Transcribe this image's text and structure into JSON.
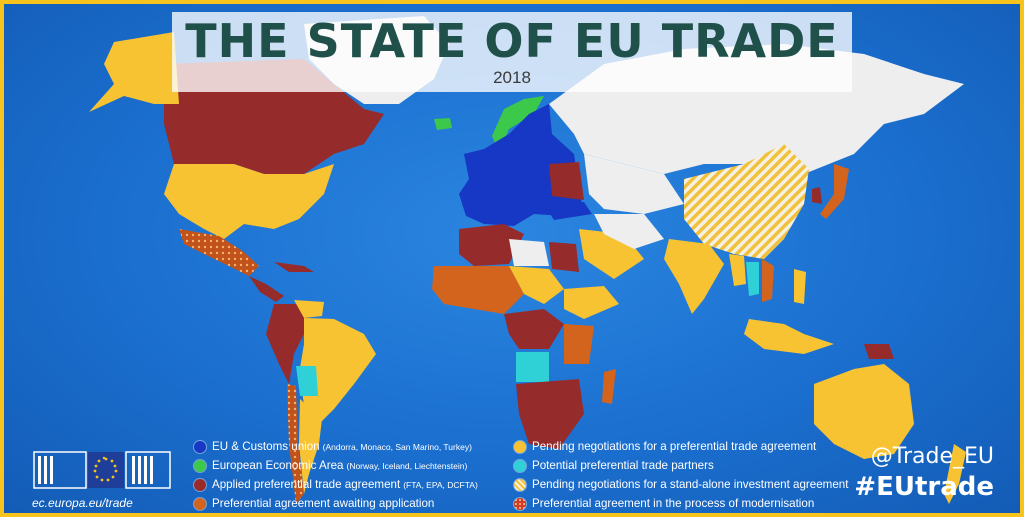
{
  "header": {
    "title": "THE STATE OF EU TRADE",
    "year": "2018"
  },
  "footer": {
    "url": "ec.europa.eu/trade",
    "twitter": "@Trade_EU",
    "hashtag": "#EUtrade"
  },
  "colors": {
    "eu_customs": "#1638c4",
    "eea": "#3cc84a",
    "applied": "#9a2a2a",
    "awaiting": "#d3641e",
    "pending": "#f7c332",
    "potential": "#2fd0d6",
    "investment": "#f7c332",
    "modernisation": "#d3641e",
    "non_partner": "#eeeeee",
    "ocean": "#1b6fcf",
    "frame": "#f7c31c"
  },
  "legend": {
    "items": [
      {
        "label": "EU & Customs union",
        "note": "(Andorra, Monaco, San Marino, Turkey)",
        "color_key": "eu_customs",
        "pattern": "solid"
      },
      {
        "label": "European Economic Area",
        "note": "(Norway, Iceland, Liechtenstein)",
        "color_key": "eea",
        "pattern": "solid"
      },
      {
        "label": "Applied preferential trade agreement",
        "note": "(FTA, EPA, DCFTA)",
        "color_key": "applied",
        "pattern": "solid"
      },
      {
        "label": "Preferential agreement awaiting application",
        "note": "",
        "color_key": "awaiting",
        "pattern": "solid"
      },
      {
        "label": "Pending negotiations for a preferential trade agreement",
        "note": "",
        "color_key": "pending",
        "pattern": "solid"
      },
      {
        "label": "Potential preferential trade partners",
        "note": "",
        "color_key": "potential",
        "pattern": "solid"
      },
      {
        "label": "Pending negotiations for a stand-alone investment agreement",
        "note": "",
        "color_key": "investment",
        "pattern": "hatched"
      },
      {
        "label": "Preferential agreement in the process of modernisation",
        "note": "",
        "color_key": "modernisation",
        "pattern": "dotted"
      }
    ]
  }
}
